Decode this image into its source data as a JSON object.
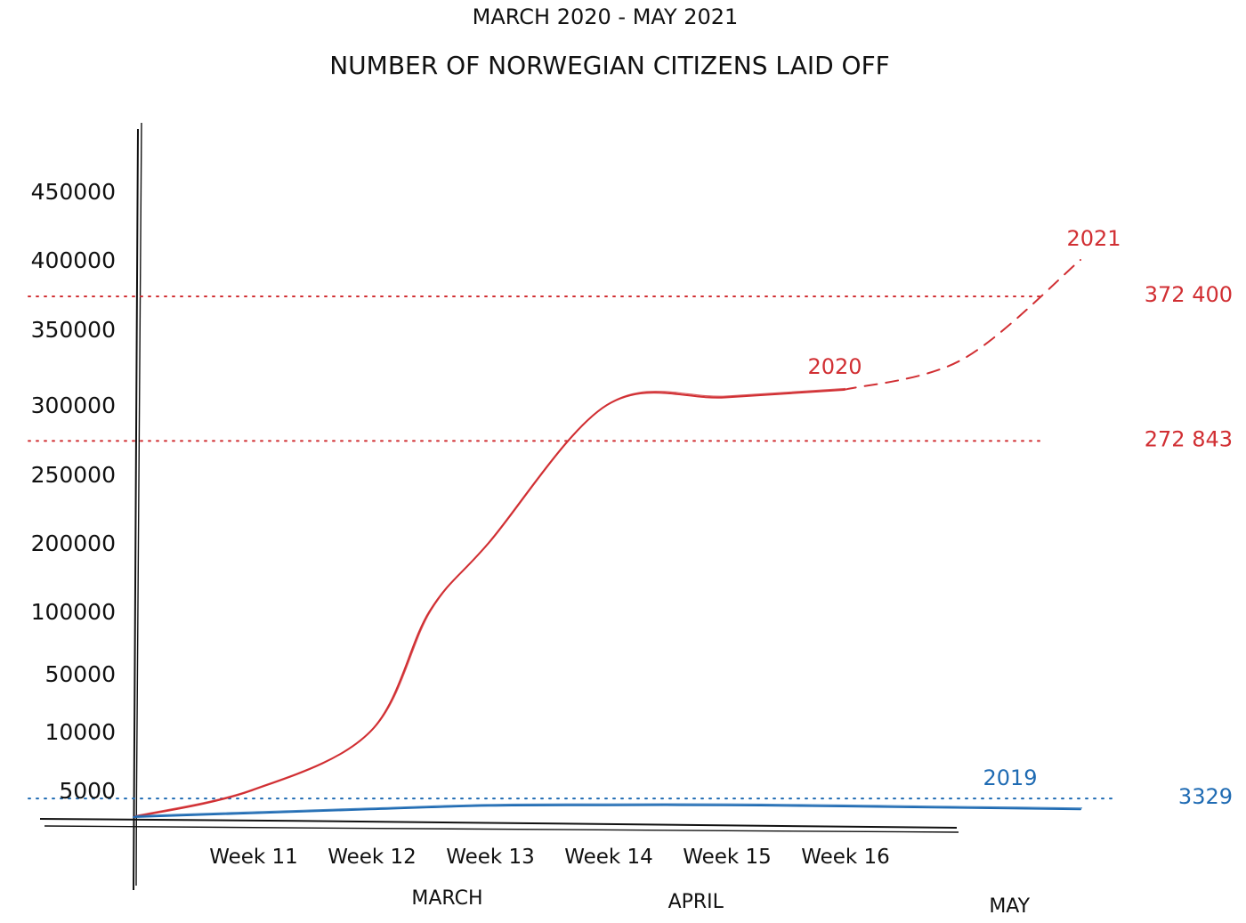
{
  "chart_data": {
    "type": "line",
    "subtitle": "MARCH 2020 - MAY 2021",
    "title": "NUMBER OF NORWEGIAN CITIZENS LAID OFF",
    "y_ticks": [
      "5000",
      "10000",
      "50000",
      "100000",
      "200000",
      "250000",
      "300000",
      "350000",
      "400000",
      "450000"
    ],
    "y_scale": "non-linear (hand-drawn)",
    "x_ticks": [
      "Week 11",
      "Week 12",
      "Week 13",
      "Week 14",
      "Week 15",
      "Week 16"
    ],
    "month_labels": [
      "MARCH",
      "APRIL",
      "MAY"
    ],
    "series": [
      {
        "name": "2020",
        "color": "#d12f33",
        "style": "solid",
        "x": [
          "Week 10",
          "Week 11",
          "Week 12",
          "Week 12.5",
          "Week 13",
          "Week 14",
          "Week 15",
          "Week 16"
        ],
        "y": [
          500,
          5000,
          10000,
          100000,
          200000,
          300000,
          305000,
          310000
        ]
      },
      {
        "name": "2021",
        "color": "#d12f33",
        "style": "dashed",
        "x": [
          "Week 16",
          "Week 17",
          "Week 18"
        ],
        "y": [
          310000,
          330000,
          400000
        ]
      },
      {
        "name": "2019",
        "color": "#1f6bb3",
        "style": "solid",
        "x": [
          "Week 10",
          "Week 12",
          "Week 13",
          "Week 14",
          "Week 15",
          "Week 16",
          "Week 18"
        ],
        "y": [
          500,
          1800,
          2400,
          2500,
          2500,
          2300,
          1800
        ]
      }
    ],
    "reference_lines": [
      {
        "label": "372 400",
        "value": 372400,
        "color": "#d12f33"
      },
      {
        "label": "272 843",
        "value": 272843,
        "color": "#d12f33"
      },
      {
        "label": "3329",
        "value": 3329,
        "color": "#1f6bb3"
      }
    ],
    "grid": false,
    "legend": "inline labels"
  }
}
